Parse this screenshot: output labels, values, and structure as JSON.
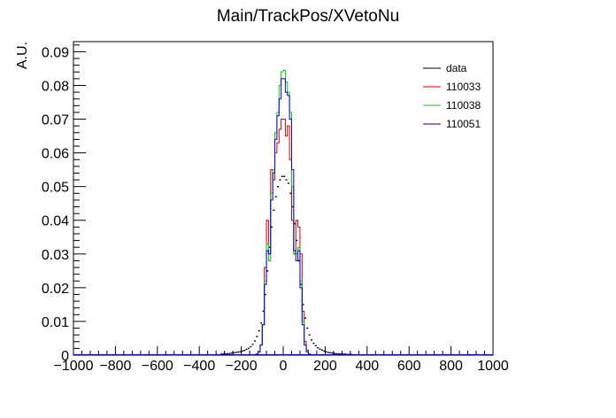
{
  "chart_data": {
    "type": "line",
    "title": "Main/TrackPos/XVetoNu",
    "xlabel": "",
    "ylabel": "A.U.",
    "xlim": [
      -1000,
      1000
    ],
    "ylim": [
      0,
      0.093
    ],
    "bin_width": 10,
    "x_ticks": [
      -1000,
      -800,
      -600,
      -400,
      -200,
      0,
      200,
      400,
      600,
      800,
      1000
    ],
    "x_tick_labels": [
      "−1000",
      "−800",
      "−600",
      "−400",
      "−200",
      "0",
      "200",
      "400",
      "600",
      "800",
      "1000"
    ],
    "y_ticks": [
      0,
      0.01,
      0.02,
      0.03,
      0.04,
      0.05,
      0.06,
      0.07,
      0.08,
      0.09
    ],
    "y_tick_labels": [
      "0",
      "0.01",
      "0.02",
      "0.03",
      "0.04",
      "0.05",
      "0.06",
      "0.07",
      "0.08",
      "0.09"
    ],
    "grid": false,
    "legend_position": "top-right",
    "series": [
      {
        "name": "data",
        "color": "#000000",
        "style": "points",
        "x": [
          -300,
          -290,
          -280,
          -270,
          -260,
          -250,
          -240,
          -230,
          -220,
          -210,
          -200,
          -190,
          -180,
          -170,
          -160,
          -150,
          -140,
          -130,
          -120,
          -110,
          -100,
          -90,
          -80,
          -70,
          -60,
          -50,
          -40,
          -30,
          -20,
          -10,
          0,
          10,
          20,
          30,
          40,
          50,
          60,
          70,
          80,
          90,
          100,
          110,
          120,
          130,
          140,
          150,
          160,
          170,
          180,
          190,
          200,
          210,
          220,
          230,
          240,
          250,
          260,
          270,
          280,
          290,
          300,
          310,
          320
        ],
        "values": [
          0.0003,
          0.0003,
          0.0004,
          0.0004,
          0.0005,
          0.0006,
          0.0007,
          0.0008,
          0.0009,
          0.001,
          0.0012,
          0.0014,
          0.0017,
          0.002,
          0.0025,
          0.0032,
          0.0042,
          0.0055,
          0.0072,
          0.0095,
          0.013,
          0.018,
          0.025,
          0.032,
          0.038,
          0.043,
          0.047,
          0.05,
          0.052,
          0.053,
          0.053,
          0.052,
          0.051,
          0.048,
          0.044,
          0.039,
          0.034,
          0.028,
          0.021,
          0.015,
          0.011,
          0.008,
          0.006,
          0.0045,
          0.0035,
          0.0028,
          0.0022,
          0.0018,
          0.0015,
          0.0012,
          0.001,
          0.0008,
          0.0007,
          0.0006,
          0.0005,
          0.0004,
          0.0004,
          0.0003,
          0.0003,
          0.0003,
          0.0002,
          0.0002,
          0.0002
        ]
      },
      {
        "name": "110033",
        "color": "#cc0000",
        "style": "step",
        "x": [
          -130,
          -120,
          -110,
          -100,
          -90,
          -80,
          -70,
          -60,
          -50,
          -40,
          -30,
          -20,
          -10,
          0,
          10,
          20,
          30,
          40,
          50,
          60,
          70,
          80,
          90,
          100,
          110,
          120
        ],
        "values": [
          0.0003,
          0.001,
          0.003,
          0.009,
          0.026,
          0.04,
          0.03,
          0.055,
          0.052,
          0.06,
          0.063,
          0.067,
          0.07,
          0.07,
          0.065,
          0.068,
          0.058,
          0.04,
          0.03,
          0.04,
          0.038,
          0.03,
          0.013,
          0.004,
          0.0015,
          0.0003
        ]
      },
      {
        "name": "110038",
        "color": "#00cc00",
        "style": "step",
        "x": [
          -130,
          -120,
          -110,
          -100,
          -90,
          -80,
          -70,
          -60,
          -50,
          -40,
          -30,
          -20,
          -10,
          0,
          10,
          20,
          30,
          40,
          50,
          60,
          70,
          80,
          90,
          100,
          110,
          120
        ],
        "values": [
          0.0003,
          0.001,
          0.003,
          0.009,
          0.022,
          0.033,
          0.028,
          0.048,
          0.055,
          0.066,
          0.072,
          0.08,
          0.084,
          0.0845,
          0.081,
          0.078,
          0.072,
          0.05,
          0.03,
          0.03,
          0.032,
          0.022,
          0.01,
          0.003,
          0.001,
          0.0003
        ]
      },
      {
        "name": "110051",
        "color": "#0000cc",
        "style": "step",
        "x": [
          -130,
          -120,
          -110,
          -100,
          -90,
          -80,
          -70,
          -60,
          -50,
          -40,
          -30,
          -20,
          -10,
          0,
          10,
          20,
          30,
          40,
          50,
          60,
          70,
          80,
          90,
          100,
          110,
          120
        ],
        "values": [
          0.0003,
          0.001,
          0.003,
          0.009,
          0.021,
          0.031,
          0.03,
          0.046,
          0.054,
          0.064,
          0.071,
          0.076,
          0.082,
          0.082,
          0.078,
          0.077,
          0.07,
          0.055,
          0.031,
          0.028,
          0.031,
          0.02,
          0.009,
          0.003,
          0.001,
          0.0003
        ]
      }
    ]
  }
}
